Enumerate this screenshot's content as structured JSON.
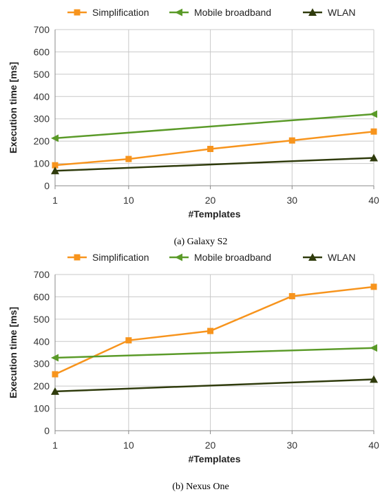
{
  "chart_data": [
    {
      "type": "line",
      "caption": "(a)  Galaxy S2",
      "xlabel": "#Templates",
      "ylabel": "Execution time [ms]",
      "x": [
        1,
        10,
        20,
        30,
        40
      ],
      "xlim": [
        1,
        40
      ],
      "ylim": [
        0,
        700
      ],
      "yticks": [
        0,
        100,
        200,
        300,
        400,
        500,
        600,
        700
      ],
      "grid": true,
      "legend_position": "top",
      "series": [
        {
          "name": "Simplification",
          "color": "#f7941d",
          "marker": "square",
          "values": [
            92,
            120,
            165,
            203,
            243
          ]
        },
        {
          "name": "Mobile broadband",
          "color": "#5a9a28",
          "marker": "triangle-left",
          "values": [
            213,
            null,
            null,
            null,
            321
          ]
        },
        {
          "name": "WLAN",
          "color": "#2f3b0c",
          "marker": "triangle-up",
          "values": [
            67,
            null,
            null,
            null,
            125
          ]
        }
      ]
    },
    {
      "type": "line",
      "caption": "(b)  Nexus One",
      "xlabel": "#Templates",
      "ylabel": "Execution time [ms]",
      "x": [
        1,
        10,
        20,
        30,
        40
      ],
      "xlim": [
        1,
        40
      ],
      "ylim": [
        0,
        700
      ],
      "yticks": [
        0,
        100,
        200,
        300,
        400,
        500,
        600,
        700
      ],
      "grid": true,
      "legend_position": "top",
      "series": [
        {
          "name": "Simplification",
          "color": "#f7941d",
          "marker": "square",
          "values": [
            253,
            405,
            447,
            603,
            645
          ]
        },
        {
          "name": "Mobile broadband",
          "color": "#5a9a28",
          "marker": "triangle-left",
          "values": [
            327,
            null,
            null,
            null,
            371
          ]
        },
        {
          "name": "WLAN",
          "color": "#2f3b0c",
          "marker": "triangle-up",
          "values": [
            176,
            null,
            null,
            null,
            230
          ]
        }
      ]
    }
  ]
}
